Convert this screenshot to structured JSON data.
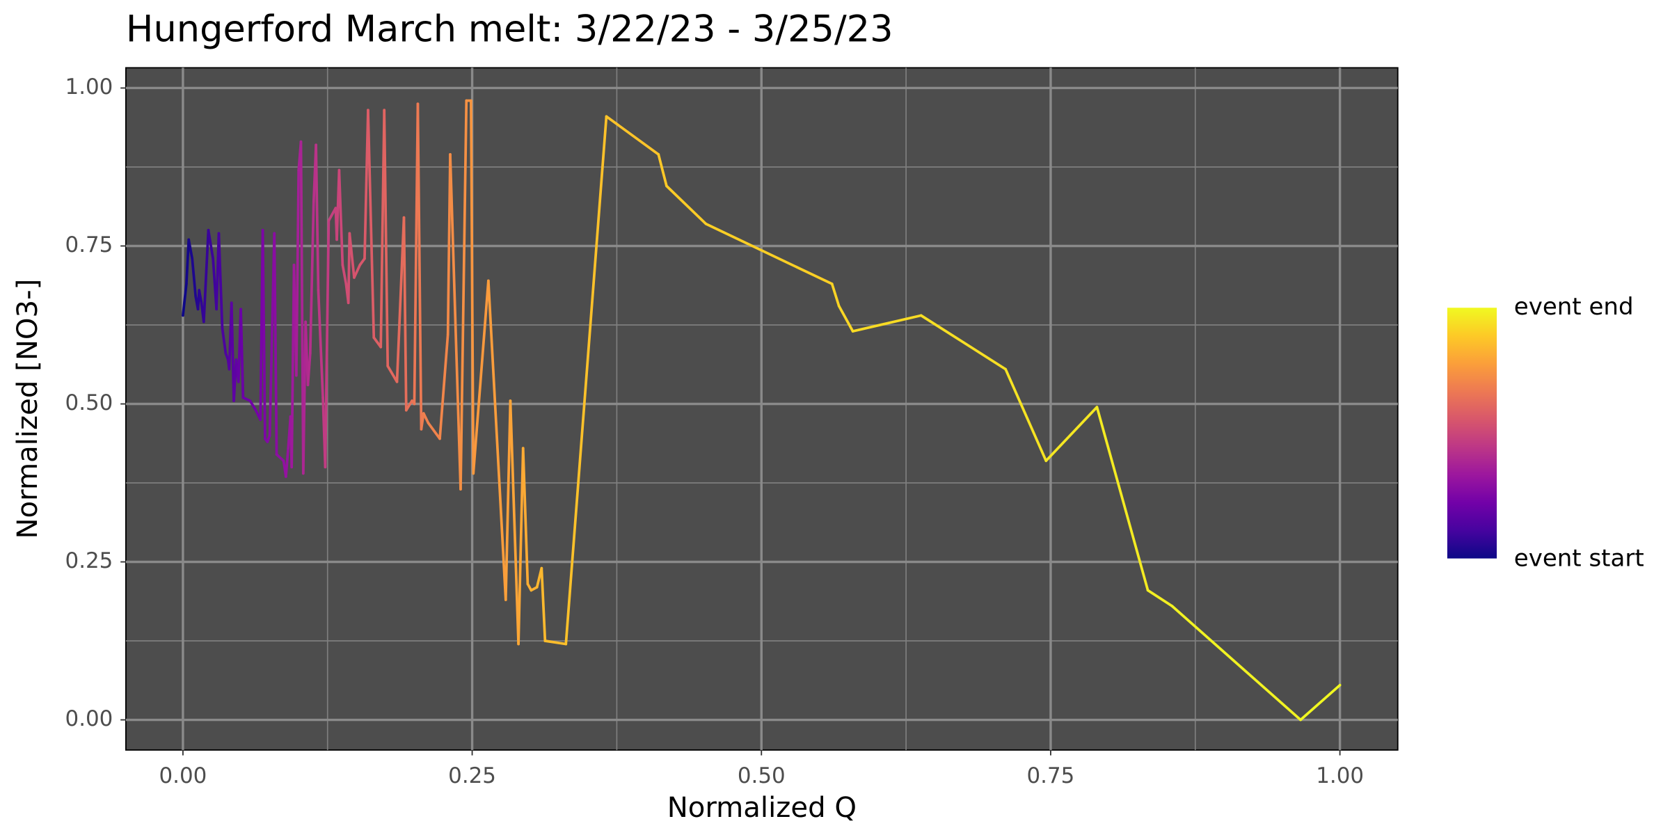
{
  "chart_data": {
    "type": "line",
    "title": "Hungerford March melt: 3/22/23 - 3/25/23",
    "x_label": "Normalized Q",
    "y_label": "Normalized [NO3-]",
    "x": [
      0,
      0.003,
      0.005,
      0.008,
      0.011,
      0.013,
      0.014,
      0.016,
      0.018,
      0.022,
      0.026,
      0.029,
      0.031,
      0.034,
      0.037,
      0.039,
      0.04,
      0.042,
      0.044,
      0.046,
      0.048,
      0.05,
      0.052,
      0.058,
      0.063,
      0.067,
      0.069,
      0.071,
      0.073,
      0.075,
      0.079,
      0.081,
      0.087,
      0.089,
      0.091,
      0.093,
      0.094,
      0.096,
      0.098,
      0.1,
      0.102,
      0.104,
      0.106,
      0.108,
      0.11,
      0.113,
      0.115,
      0.117,
      0.121,
      0.123,
      0.126,
      0.132,
      0.133,
      0.135,
      0.138,
      0.141,
      0.143,
      0.144,
      0.148,
      0.153,
      0.157,
      0.16,
      0.165,
      0.171,
      0.174,
      0.177,
      0.185,
      0.191,
      0.193,
      0.198,
      0.2,
      0.203,
      0.206,
      0.208,
      0.212,
      0.222,
      0.229,
      0.231,
      0.24,
      0.245,
      0.249,
      0.251,
      0.264,
      0.279,
      0.283,
      0.29,
      0.294,
      0.298,
      0.301,
      0.306,
      0.31,
      0.313,
      0.331,
      0.366,
      0.411,
      0.418,
      0.452,
      0.561,
      0.567,
      0.579,
      0.638,
      0.711,
      0.746,
      0.79,
      0.834,
      0.855,
      0.966,
      1.0
    ],
    "values": [
      0.64,
      0.69,
      0.76,
      0.73,
      0.67,
      0.65,
      0.68,
      0.66,
      0.63,
      0.775,
      0.73,
      0.65,
      0.77,
      0.62,
      0.58,
      0.57,
      0.555,
      0.66,
      0.505,
      0.57,
      0.535,
      0.65,
      0.51,
      0.505,
      0.49,
      0.475,
      0.775,
      0.445,
      0.44,
      0.45,
      0.77,
      0.42,
      0.41,
      0.385,
      0.43,
      0.48,
      0.4,
      0.72,
      0.545,
      0.87,
      0.915,
      0.39,
      0.63,
      0.53,
      0.58,
      0.82,
      0.91,
      0.68,
      0.51,
      0.4,
      0.79,
      0.81,
      0.76,
      0.87,
      0.72,
      0.69,
      0.66,
      0.77,
      0.7,
      0.72,
      0.73,
      0.965,
      0.605,
      0.59,
      0.965,
      0.56,
      0.535,
      0.795,
      0.49,
      0.505,
      0.5,
      0.975,
      0.46,
      0.485,
      0.47,
      0.445,
      0.61,
      0.895,
      0.365,
      0.98,
      0.98,
      0.39,
      0.695,
      0.19,
      0.505,
      0.12,
      0.43,
      0.215,
      0.205,
      0.21,
      0.24,
      0.125,
      0.12,
      0.955,
      0.895,
      0.845,
      0.785,
      0.69,
      0.655,
      0.615,
      0.64,
      0.555,
      0.41,
      0.495,
      0.205,
      0.18,
      0.0,
      0.055
    ],
    "xlim": [
      -0.0493,
      1.05
    ],
    "ylim": [
      -0.0477,
      1.032
    ],
    "xticks": [
      {
        "value": 0,
        "label": "0.00"
      },
      0.25,
      {
        "value": 0.5,
        "label": "0.50"
      },
      0.75,
      {
        "value": 1,
        "label": "1.00"
      }
    ],
    "yticks": [
      {
        "value": 0,
        "label": "0.00"
      },
      0.25,
      {
        "value": 0.5,
        "label": "0.50"
      },
      0.75,
      {
        "value": 1,
        "label": "1.00"
      }
    ],
    "grid": true,
    "minor_grid": true,
    "legend_position": "right",
    "colorbar": {
      "labels": [
        "event start",
        "event end"
      ],
      "colormap": [
        "#0d0887",
        "#46039f",
        "#7201a8",
        "#9c179e",
        "#bd3786",
        "#d8576b",
        "#ed7953",
        "#fb9f3a",
        "#fdca26",
        "#f0f921"
      ]
    }
  }
}
